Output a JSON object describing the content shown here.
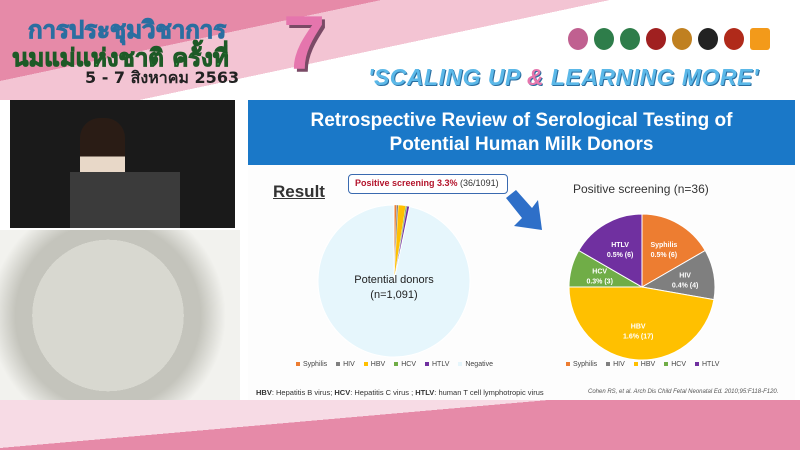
{
  "header": {
    "thai_line1": "การประชุมวิชาการ",
    "thai_line2": "นมแม่แห่งชาติ ครั้งที่",
    "thai_date": "5 - 7 สิงหาคม 2563",
    "number": "7",
    "slogan_a": "'SCALING UP ",
    "slogan_amp": "&",
    "slogan_b": " LEARNING MORE'"
  },
  "slide": {
    "title_line1": "Retrospective Review of Serological Testing of",
    "title_line2": "Potential Human Milk Donors",
    "result_label": "Result",
    "callout_bold": "Positive screening 3.3%",
    "callout_rest": " (36/1091)",
    "footnote": {
      "hbv_abbr": "HBV",
      "hbv": ": Hepatitis B virus; ",
      "hcv_abbr": "HCV",
      "hcv": ": Hepatitis C virus ; ",
      "htlv_abbr": "HTLV",
      "htlv": ": human T cell lymphotropic virus"
    },
    "citation": "Cohen RS, et al. Arch Dis Child Fetal Neonatal Ed. 2010;95:F118-F120."
  },
  "chart_data": [
    {
      "type": "pie",
      "title": "",
      "center_label_line1": "Potential donors",
      "center_label_line2": "(n=1,091)",
      "categories": [
        "Syphilis",
        "HIV",
        "HBV",
        "HCV",
        "HTLV",
        "Negative"
      ],
      "values": [
        6,
        4,
        17,
        3,
        6,
        1055
      ],
      "colors": [
        "#ed7d31",
        "#7f7f7f",
        "#ffc000",
        "#70ad47",
        "#7030a0",
        "#e6f6fc"
      ],
      "legend": "bottom"
    },
    {
      "type": "pie",
      "title": "Positive screening (n=36)",
      "categories": [
        "Syphilis",
        "HIV",
        "HBV",
        "HCV",
        "HTLV"
      ],
      "values": [
        6,
        4,
        17,
        3,
        6
      ],
      "data_labels": [
        "0.5% (6)",
        "0.4% (4)",
        "1.6% (17)",
        "0.3% (3)",
        "0.5% (6)"
      ],
      "colors": [
        "#ed7d31",
        "#7f7f7f",
        "#ffc000",
        "#70ad47",
        "#7030a0"
      ],
      "legend": "bottom"
    }
  ]
}
